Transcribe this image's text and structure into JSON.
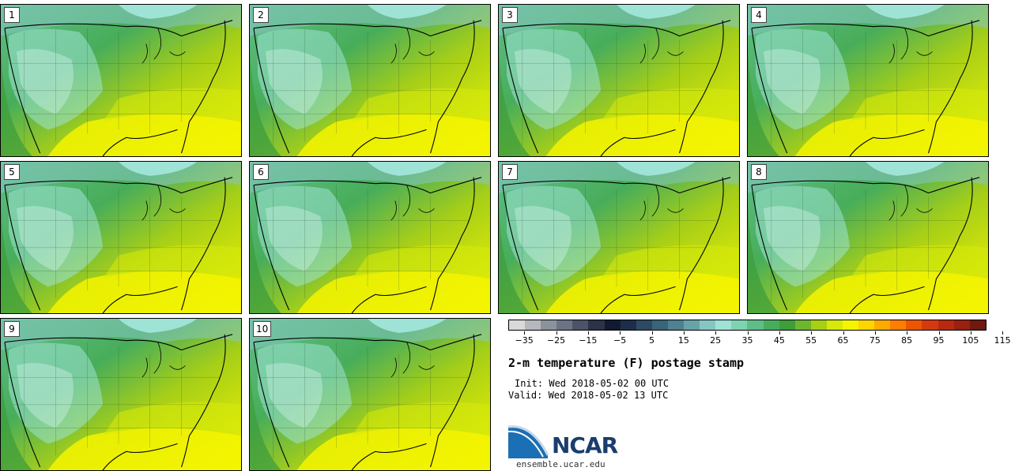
{
  "panels": [
    {
      "label": "1"
    },
    {
      "label": "2"
    },
    {
      "label": "3"
    },
    {
      "label": "4"
    },
    {
      "label": "5"
    },
    {
      "label": "6"
    },
    {
      "label": "7"
    },
    {
      "label": "8"
    },
    {
      "label": "9"
    },
    {
      "label": "10"
    }
  ],
  "legend": {
    "colors": [
      "#d9d9d9",
      "#b5b8bd",
      "#8b929c",
      "#6c7484",
      "#4c5469",
      "#2c3247",
      "#111a33",
      "#1e2e4a",
      "#2d4a60",
      "#3a6478",
      "#4f8190",
      "#68a3a8",
      "#86c6c2",
      "#9fe3d6",
      "#7fd3b2",
      "#5fbe88",
      "#48ad5a",
      "#3f9d3c",
      "#6fb62f",
      "#a7cf17",
      "#d6e90a",
      "#f5f500",
      "#ffd500",
      "#ffaa00",
      "#ff7d00",
      "#ee5500",
      "#d43a10",
      "#b82a10",
      "#9a2010",
      "#6e1a0e"
    ],
    "tick_values": [
      -35,
      -25,
      -15,
      -5,
      5,
      15,
      25,
      35,
      45,
      55,
      65,
      75,
      85,
      95,
      105,
      115
    ],
    "tick_labels": [
      "−35",
      "−25",
      "−15",
      "−5",
      "5",
      "15",
      "25",
      "35",
      "45",
      "55",
      "65",
      "75",
      "85",
      "95",
      "105",
      "115"
    ]
  },
  "title": "2-m temperature (F) postage stamp",
  "init": "Init: Wed 2018-05-02 00 UTC",
  "valid": "Valid: Wed 2018-05-02 13 UTC",
  "logo_text": "NCAR",
  "website": "ensemble.ucar.edu"
}
